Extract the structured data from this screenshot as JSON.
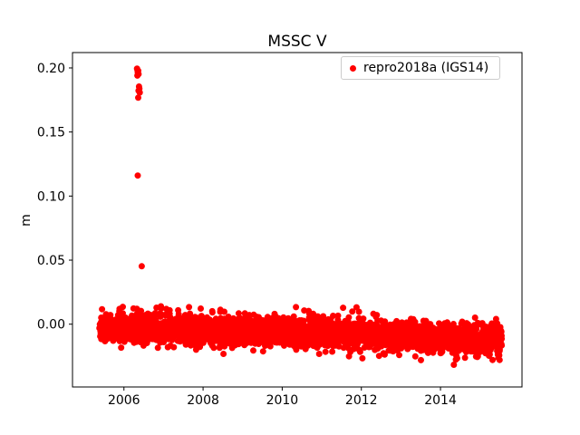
{
  "chart_data": {
    "type": "scatter",
    "title": "MSSC V",
    "xlabel": "",
    "ylabel": "m",
    "xlim": [
      2004.7,
      2016.06
    ],
    "ylim": [
      -0.049,
      0.212
    ],
    "xticks": {
      "values": [
        2006,
        2008,
        2010,
        2012,
        2014
      ],
      "labels": [
        "2006",
        "2008",
        "2010",
        "2012",
        "2014"
      ]
    },
    "yticks": {
      "values": [
        0.0,
        0.05,
        0.1,
        0.15,
        0.2
      ],
      "labels": [
        "0.00",
        "0.05",
        "0.10",
        "0.15",
        "0.20"
      ]
    },
    "grid": false,
    "legend_position": "upper right",
    "series": [
      {
        "name": "repro2018a (IGS14)",
        "color": "#ff0000",
        "marker": "o",
        "marker_radius_px": 3.5,
        "band": {
          "description": "dense noise band of daily solutions",
          "x_start": 2005.38,
          "x_end": 2015.55,
          "count": 2600,
          "mean_start": -0.002,
          "mean_end": -0.012,
          "std": 0.006,
          "clip_min": -0.033,
          "clip_max": 0.017
        },
        "outliers": [
          [
            2006.33,
            0.1995
          ],
          [
            2006.34,
            0.1985
          ],
          [
            2006.36,
            0.1978
          ],
          [
            2006.35,
            0.1965
          ],
          [
            2006.37,
            0.1952
          ],
          [
            2006.34,
            0.194
          ],
          [
            2006.38,
            0.1855
          ],
          [
            2006.39,
            0.1838
          ],
          [
            2006.37,
            0.1822
          ],
          [
            2006.4,
            0.1808
          ],
          [
            2006.36,
            0.1768
          ],
          [
            2006.35,
            0.116
          ],
          [
            2006.45,
            0.0452
          ]
        ]
      }
    ]
  }
}
